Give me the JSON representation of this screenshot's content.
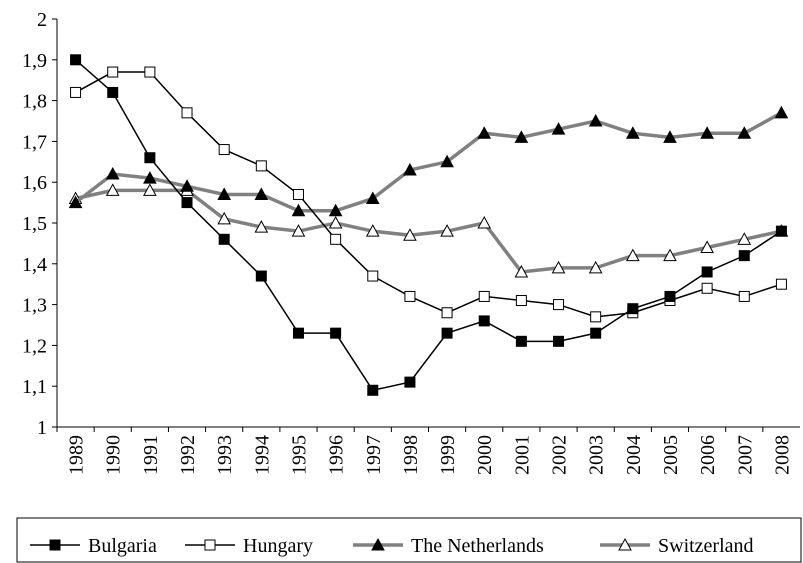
{
  "chart_data": {
    "type": "line",
    "categories": [
      "1989",
      "1990",
      "1991",
      "1992",
      "1993",
      "1994",
      "1995",
      "1996",
      "1997",
      "1998",
      "1999",
      "2000",
      "2001",
      "2002",
      "2003",
      "2004",
      "2005",
      "2006",
      "2007",
      "2008"
    ],
    "series": [
      {
        "name": "Bulgaria",
        "color": "#000000",
        "line_width": 1.5,
        "marker": "square",
        "marker_filled": true,
        "values": [
          1.9,
          1.82,
          1.66,
          1.55,
          1.46,
          1.37,
          1.23,
          1.23,
          1.09,
          1.11,
          1.23,
          1.26,
          1.21,
          1.21,
          1.23,
          1.29,
          1.32,
          1.38,
          1.42,
          1.48
        ]
      },
      {
        "name": "Hungary",
        "color": "#000000",
        "line_width": 1.5,
        "marker": "square",
        "marker_filled": false,
        "values": [
          1.82,
          1.87,
          1.87,
          1.77,
          1.68,
          1.64,
          1.57,
          1.46,
          1.37,
          1.32,
          1.28,
          1.32,
          1.31,
          1.3,
          1.27,
          1.28,
          1.31,
          1.34,
          1.32,
          1.35
        ]
      },
      {
        "name": "The Netherlands",
        "color": "#808080",
        "line_width": 3.5,
        "marker": "triangle",
        "marker_filled": true,
        "values": [
          1.55,
          1.62,
          1.61,
          1.59,
          1.57,
          1.57,
          1.53,
          1.53,
          1.56,
          1.63,
          1.65,
          1.72,
          1.71,
          1.73,
          1.75,
          1.72,
          1.71,
          1.72,
          1.72,
          1.77
        ]
      },
      {
        "name": "Switzerland",
        "color": "#808080",
        "line_width": 3.5,
        "marker": "triangle",
        "marker_filled": false,
        "values": [
          1.56,
          1.58,
          1.58,
          1.58,
          1.51,
          1.49,
          1.48,
          1.5,
          1.48,
          1.47,
          1.48,
          1.5,
          1.38,
          1.39,
          1.39,
          1.42,
          1.42,
          1.44,
          1.46,
          1.48
        ]
      }
    ],
    "ylim": [
      1,
      2
    ],
    "yticks": [
      1,
      {
        "value": 1.1,
        "label": "1,1"
      },
      {
        "value": 1.2,
        "label": "1,2"
      },
      {
        "value": 1.3,
        "label": "1,3"
      },
      {
        "value": 1.4,
        "label": "1,4"
      },
      {
        "value": 1.5,
        "label": "1,5"
      },
      {
        "value": 1.6,
        "label": "1,6"
      },
      {
        "value": 1.7,
        "label": "1,7"
      },
      {
        "value": 1.8,
        "label": "1,8"
      },
      {
        "value": 1.9,
        "label": "1,9"
      },
      2
    ],
    "grid": false,
    "legend": "bottom"
  }
}
